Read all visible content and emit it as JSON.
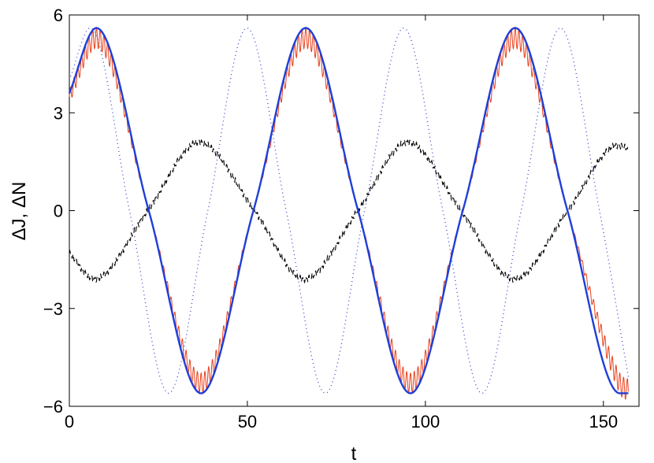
{
  "chart_data": {
    "type": "line",
    "xlabel": "t",
    "ylabel": "ΔJ, ΔN",
    "xlim": [
      0,
      160
    ],
    "ylim": [
      -6,
      6
    ],
    "xticks": [
      0,
      50,
      100,
      150
    ],
    "yticks": [
      -6,
      -3,
      0,
      3,
      6
    ],
    "grid": false,
    "legend": "none",
    "series": [
      {
        "style": "solid-thick",
        "color": "#1f3fd8",
        "t_range": [
          0,
          157
        ],
        "points": [
          [
            0,
            3.6
          ],
          [
            7.6,
            5.6
          ],
          [
            22.3,
            0
          ],
          [
            37.0,
            -5.6
          ],
          [
            51.7,
            0
          ],
          [
            66.4,
            5.6
          ],
          [
            81.1,
            0
          ],
          [
            95.8,
            -5.6
          ],
          [
            110.5,
            0
          ],
          [
            125.2,
            5.6
          ],
          [
            139.9,
            0
          ],
          [
            154.6,
            -5.6
          ],
          [
            157,
            -5.6
          ]
        ]
      },
      {
        "style": "solid-thin-oscillating",
        "color": "#e8401c",
        "t_range": [
          0,
          157
        ],
        "points": [
          [
            0,
            3.5
          ],
          [
            7.6,
            5.3
          ],
          [
            22.3,
            0
          ],
          [
            37.0,
            -5.3
          ],
          [
            51.7,
            0
          ],
          [
            66.4,
            5.3
          ],
          [
            81.1,
            0
          ],
          [
            95.8,
            -5.3
          ],
          [
            110.5,
            0
          ],
          [
            125.2,
            5.3
          ],
          [
            139.9,
            0
          ],
          [
            154.6,
            -5.3
          ],
          [
            157,
            -5.5
          ]
        ]
      },
      {
        "style": "dotted",
        "color": "#3344cc",
        "t_range": [
          0,
          157
        ],
        "points": [
          [
            0,
            4.0
          ],
          [
            5.9,
            5.6
          ],
          [
            16.9,
            0
          ],
          [
            27.9,
            -5.6
          ],
          [
            38.9,
            0
          ],
          [
            49.9,
            5.6
          ],
          [
            60.9,
            0
          ],
          [
            71.9,
            -5.6
          ],
          [
            82.9,
            0
          ],
          [
            93.9,
            5.6
          ],
          [
            104.9,
            0
          ],
          [
            115.9,
            -5.6
          ],
          [
            126.9,
            0
          ],
          [
            137.9,
            5.6
          ],
          [
            148.9,
            0
          ],
          [
            157,
            -5.1
          ]
        ]
      },
      {
        "style": "dashed",
        "color": "#000000",
        "t_range": [
          0,
          157
        ],
        "points": [
          [
            0,
            -1.3
          ],
          [
            7.0,
            -2.1
          ],
          [
            22.0,
            0
          ],
          [
            36.5,
            2.1
          ],
          [
            52.0,
            0
          ],
          [
            66.0,
            -2.1
          ],
          [
            81.0,
            0
          ],
          [
            95.0,
            2.1
          ],
          [
            110.0,
            0
          ],
          [
            125.0,
            -2.1
          ],
          [
            140.0,
            0
          ],
          [
            154.0,
            2.0
          ],
          [
            157,
            1.9
          ]
        ]
      }
    ]
  }
}
